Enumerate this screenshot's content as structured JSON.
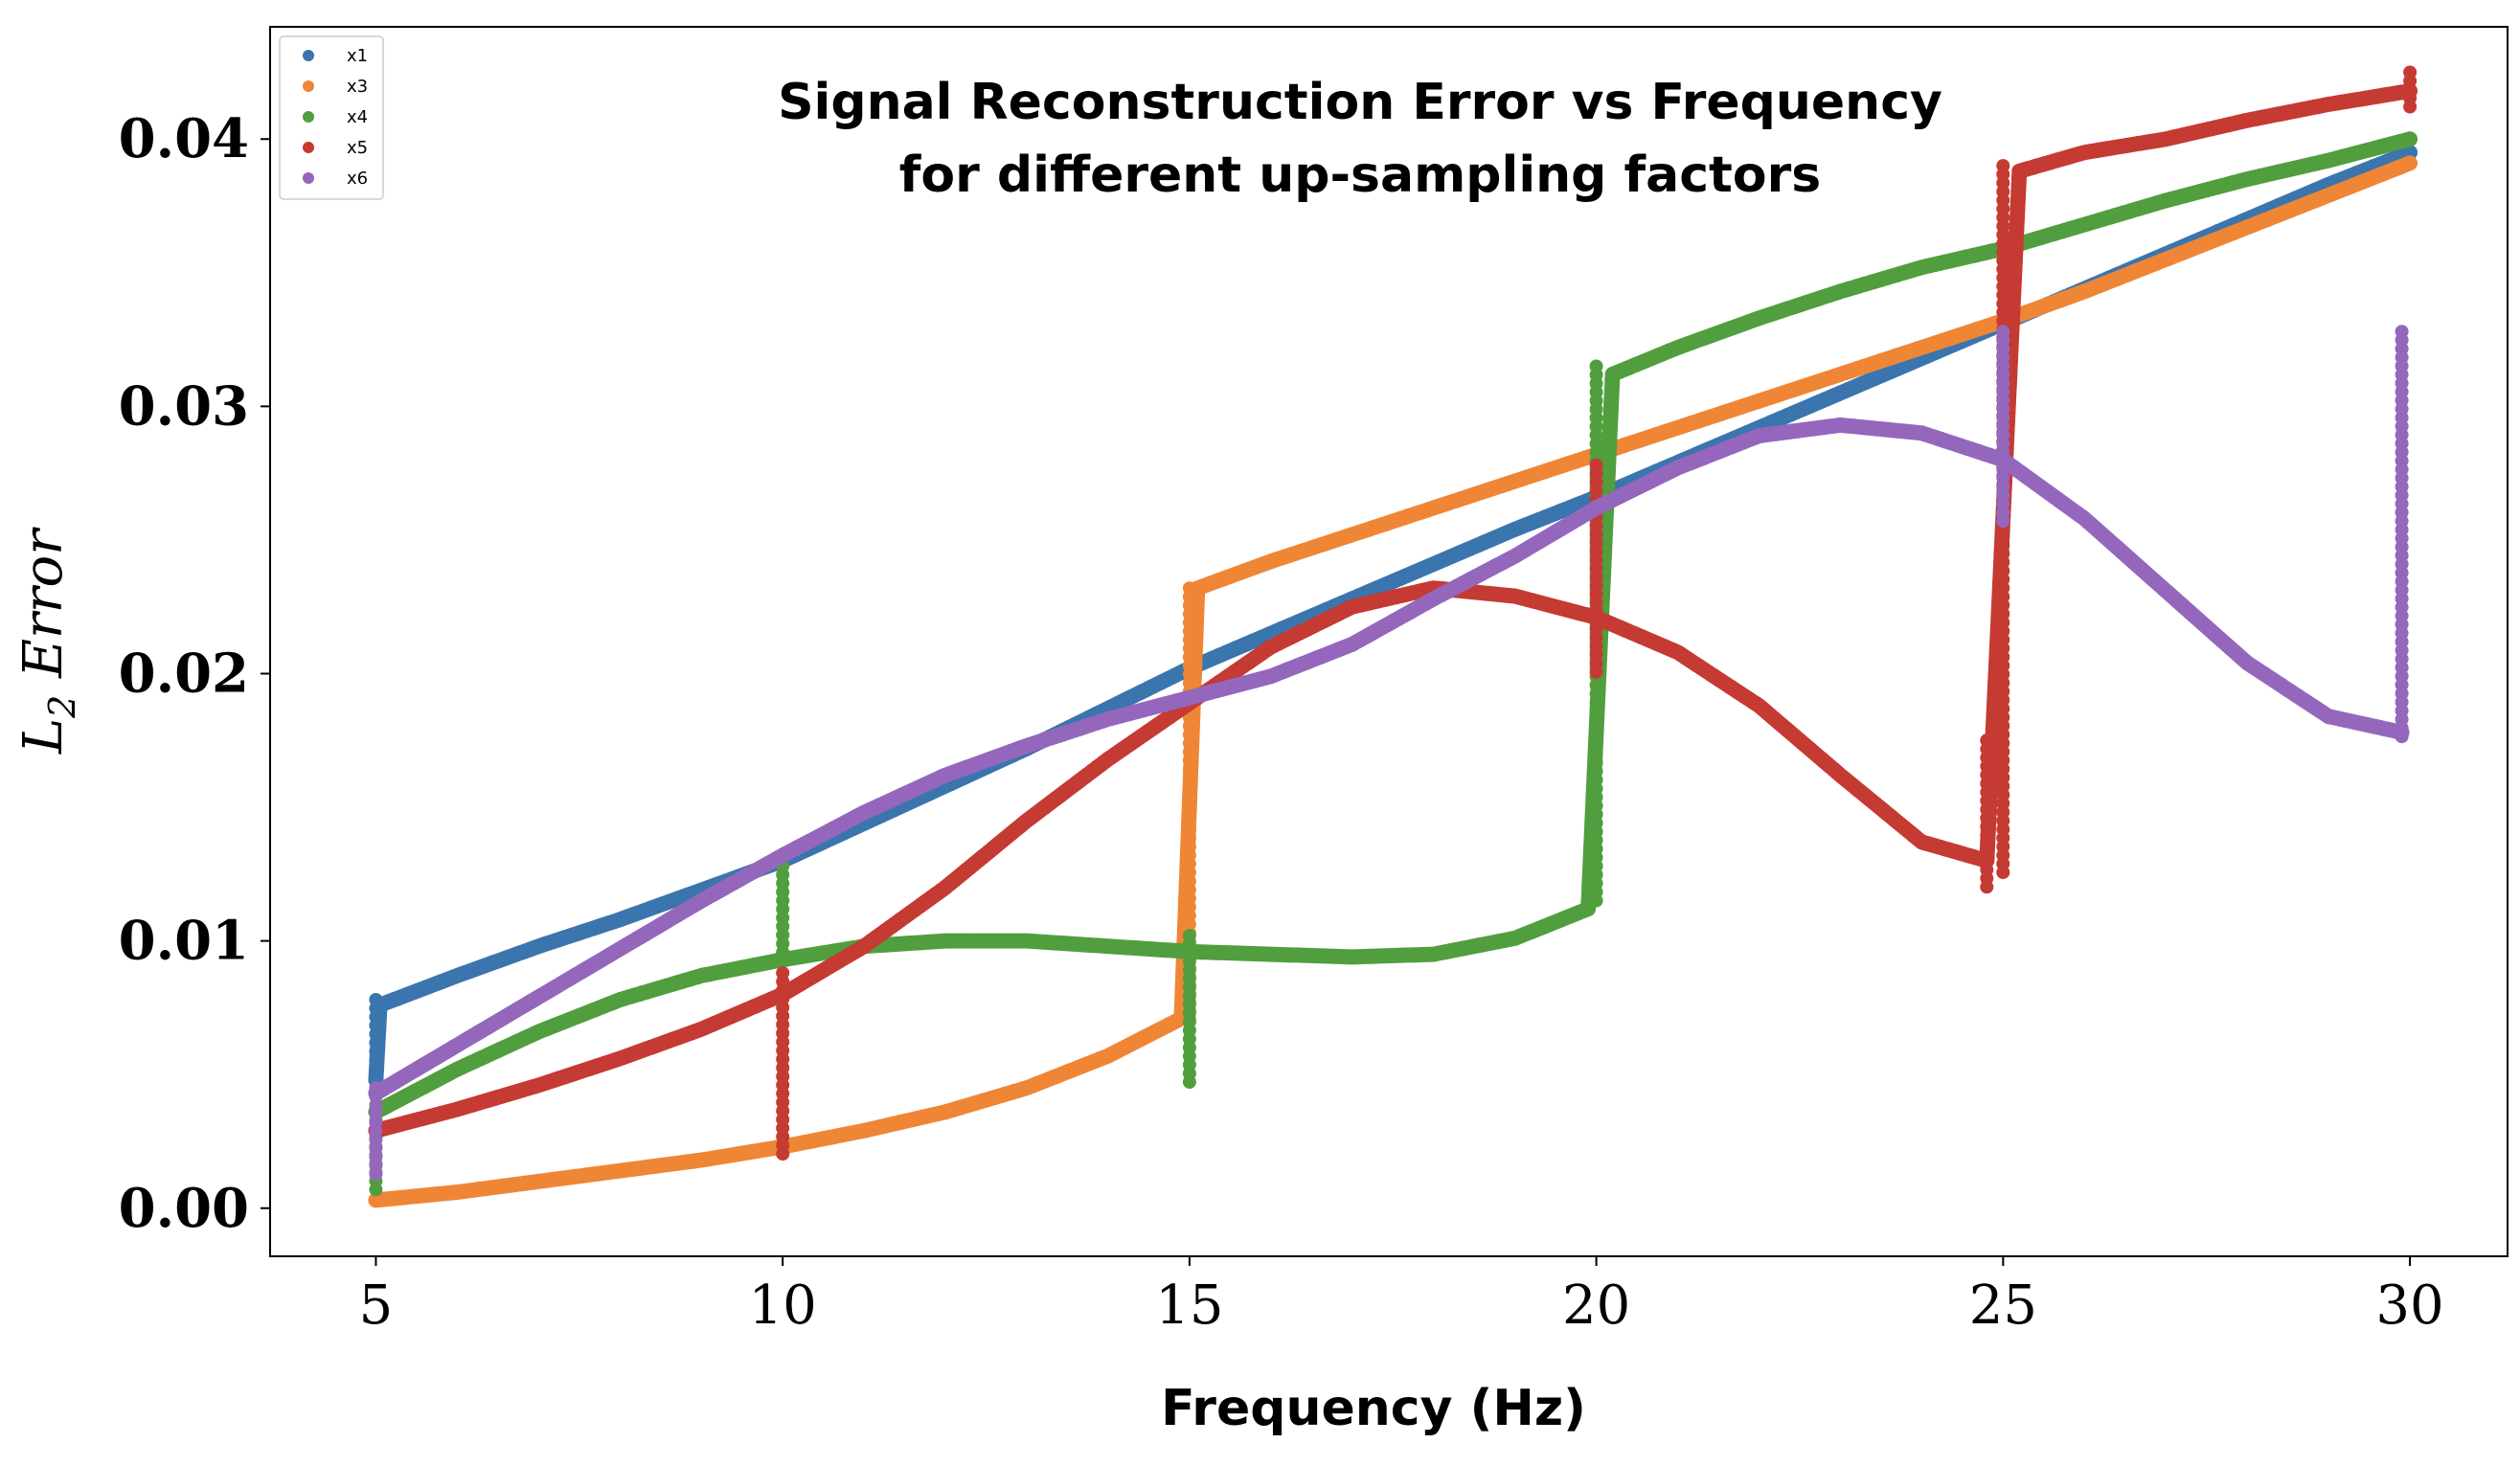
{
  "chart_data": {
    "type": "scatter",
    "title_line1": "Signal Reconstruction Error vs Frequency",
    "title_line2": "for different up-sampling factors",
    "xlabel": "Frequency (Hz)",
    "ylabel_main": "L",
    "ylabel_sub": "2",
    "ylabel_rest": " Error",
    "xlim": [
      3.7,
      31.2
    ],
    "ylim": [
      -0.0018,
      0.0442
    ],
    "xticks": [
      5,
      10,
      15,
      20,
      25,
      30
    ],
    "xtick_labels": [
      "5",
      "10",
      "15",
      "20",
      "25",
      "30"
    ],
    "yticks": [
      0.0,
      0.01,
      0.02,
      0.03,
      0.04
    ],
    "ytick_labels": [
      "0.00",
      "0.01",
      "0.02",
      "0.03",
      "0.04"
    ],
    "legend_position": "top-left",
    "series": [
      {
        "name": "x1",
        "color": "#3a75ae",
        "points": [
          [
            5.0,
            0.0048
          ],
          [
            5.05,
            0.0076
          ],
          [
            6,
            0.0087
          ],
          [
            7,
            0.0098
          ],
          [
            8,
            0.0108
          ],
          [
            9,
            0.0119
          ],
          [
            10,
            0.013
          ],
          [
            11,
            0.0144
          ],
          [
            12,
            0.0158
          ],
          [
            13,
            0.0172
          ],
          [
            14,
            0.0187
          ],
          [
            15,
            0.0202
          ],
          [
            16,
            0.0215
          ],
          [
            17,
            0.0228
          ],
          [
            18,
            0.0241
          ],
          [
            19,
            0.0254
          ],
          [
            20,
            0.0266
          ],
          [
            21,
            0.0279
          ],
          [
            22,
            0.0292
          ],
          [
            23,
            0.0305
          ],
          [
            24,
            0.0318
          ],
          [
            25,
            0.0331
          ],
          [
            26,
            0.0344
          ],
          [
            27,
            0.0357
          ],
          [
            28,
            0.037
          ],
          [
            29,
            0.0383
          ],
          [
            30,
            0.0395
          ]
        ],
        "spikes": [
          [
            5.0,
            0.0048,
            0.0078
          ]
        ]
      },
      {
        "name": "x3",
        "color": "#ef8636",
        "points": [
          [
            5,
            0.0003
          ],
          [
            6,
            0.0006
          ],
          [
            7,
            0.001
          ],
          [
            8,
            0.0014
          ],
          [
            9,
            0.0018
          ],
          [
            10,
            0.0023
          ],
          [
            11,
            0.0029
          ],
          [
            12,
            0.0036
          ],
          [
            13,
            0.0045
          ],
          [
            14,
            0.0057
          ],
          [
            14.9,
            0.0071
          ],
          [
            15.1,
            0.0232
          ],
          [
            16,
            0.0242
          ],
          [
            17,
            0.0252
          ],
          [
            18,
            0.0262
          ],
          [
            19,
            0.0272
          ],
          [
            20,
            0.0282
          ],
          [
            21,
            0.0292
          ],
          [
            22,
            0.0302
          ],
          [
            23,
            0.0312
          ],
          [
            24,
            0.0322
          ],
          [
            25,
            0.0332
          ],
          [
            26,
            0.0343
          ],
          [
            27,
            0.0355
          ],
          [
            28,
            0.0367
          ],
          [
            29,
            0.0379
          ],
          [
            30,
            0.0391
          ]
        ],
        "spikes": [
          [
            15.0,
            0.007,
            0.0232
          ]
        ]
      },
      {
        "name": "x4",
        "color": "#519e3e",
        "points": [
          [
            5,
            0.0036
          ],
          [
            6,
            0.0052
          ],
          [
            7,
            0.0066
          ],
          [
            8,
            0.0078
          ],
          [
            9,
            0.0087
          ],
          [
            10,
            0.0093
          ],
          [
            11,
            0.0098
          ],
          [
            12,
            0.01
          ],
          [
            13,
            0.01
          ],
          [
            14,
            0.0098
          ],
          [
            15,
            0.0096
          ],
          [
            16,
            0.0095
          ],
          [
            17,
            0.0094
          ],
          [
            18,
            0.0095
          ],
          [
            19,
            0.0101
          ],
          [
            19.9,
            0.0112
          ],
          [
            20.2,
            0.0312
          ],
          [
            21,
            0.0322
          ],
          [
            22,
            0.0333
          ],
          [
            23,
            0.0343
          ],
          [
            24,
            0.0352
          ],
          [
            25,
            0.0359
          ],
          [
            26,
            0.0368
          ],
          [
            27,
            0.0377
          ],
          [
            28,
            0.0385
          ],
          [
            29,
            0.0392
          ],
          [
            30,
            0.04
          ]
        ],
        "spikes": [
          [
            5.0,
            0.0004,
            0.0036
          ],
          [
            10.0,
            0.0093,
            0.0128
          ],
          [
            15.0,
            0.0045,
            0.0102
          ],
          [
            20.0,
            0.0112,
            0.0315
          ]
        ]
      },
      {
        "name": "x5",
        "color": "#c53a32",
        "points": [
          [
            5,
            0.0029
          ],
          [
            6,
            0.0037
          ],
          [
            7,
            0.0046
          ],
          [
            8,
            0.0056
          ],
          [
            9,
            0.0067
          ],
          [
            10,
            0.008
          ],
          [
            11,
            0.0098
          ],
          [
            12,
            0.012
          ],
          [
            13,
            0.0145
          ],
          [
            14,
            0.0168
          ],
          [
            15,
            0.0189
          ],
          [
            16,
            0.021
          ],
          [
            17,
            0.0225
          ],
          [
            18,
            0.0232
          ],
          [
            19,
            0.0229
          ],
          [
            20,
            0.0221
          ],
          [
            21,
            0.0208
          ],
          [
            22,
            0.0188
          ],
          [
            23,
            0.0162
          ],
          [
            24,
            0.0137
          ],
          [
            24.8,
            0.013
          ],
          [
            25.2,
            0.0388
          ],
          [
            26,
            0.0395
          ],
          [
            27,
            0.04
          ],
          [
            28,
            0.0407
          ],
          [
            29,
            0.0413
          ],
          [
            30,
            0.0418
          ]
        ],
        "spikes": [
          [
            10.0,
            0.0019,
            0.0088
          ],
          [
            20.0,
            0.02,
            0.0278
          ],
          [
            24.8,
            0.012,
            0.0175
          ],
          [
            25.0,
            0.0125,
            0.039
          ],
          [
            30.0,
            0.041,
            0.0425
          ]
        ]
      },
      {
        "name": "x6",
        "color": "#9467bd",
        "points": [
          [
            5,
            0.0043
          ],
          [
            6,
            0.0061
          ],
          [
            7,
            0.0079
          ],
          [
            8,
            0.0097
          ],
          [
            9,
            0.0115
          ],
          [
            10,
            0.0132
          ],
          [
            11,
            0.0148
          ],
          [
            12,
            0.0162
          ],
          [
            13,
            0.0173
          ],
          [
            14,
            0.0183
          ],
          [
            15,
            0.0191
          ],
          [
            16,
            0.0199
          ],
          [
            17,
            0.0211
          ],
          [
            18,
            0.0228
          ],
          [
            19,
            0.0244
          ],
          [
            20,
            0.0262
          ],
          [
            21,
            0.0277
          ],
          [
            22,
            0.0289
          ],
          [
            23,
            0.0293
          ],
          [
            24,
            0.029
          ],
          [
            25,
            0.028
          ],
          [
            26,
            0.0258
          ],
          [
            27,
            0.0231
          ],
          [
            28,
            0.0204
          ],
          [
            29,
            0.0184
          ],
          [
            29.9,
            0.0178
          ]
        ],
        "spikes": [
          [
            5.0,
            0.0012,
            0.0045
          ],
          [
            25.0,
            0.0256,
            0.0328
          ],
          [
            29.9,
            0.0175,
            0.0328
          ]
        ]
      }
    ]
  }
}
